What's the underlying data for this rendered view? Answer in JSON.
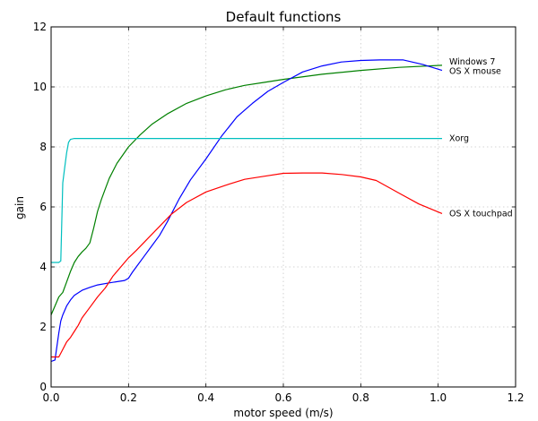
{
  "chart_data": {
    "type": "line",
    "title": "Default functions",
    "xlabel": "motor speed (m/s)",
    "ylabel": "gain",
    "xlim": [
      0,
      1.2
    ],
    "ylim": [
      0,
      12
    ],
    "x_ticks": [
      0,
      0.2,
      0.4,
      0.6,
      0.8,
      1.0,
      1.2
    ],
    "y_ticks": [
      0,
      2,
      4,
      6,
      8,
      10,
      12
    ],
    "x_tick_labels": [
      "0.0",
      "0.2",
      "0.4",
      "0.6",
      "0.8",
      "1.0",
      "1.2"
    ],
    "y_tick_labels": [
      "0",
      "2",
      "4",
      "6",
      "8",
      "10",
      "12"
    ],
    "grid": true,
    "legend": "inline labels at line ends",
    "series": [
      {
        "name": "Windows 7",
        "color": "#008000",
        "x": [
          0.0,
          0.01,
          0.02,
          0.03,
          0.04,
          0.05,
          0.06,
          0.07,
          0.08,
          0.09,
          0.1,
          0.11,
          0.12,
          0.13,
          0.14,
          0.15,
          0.17,
          0.2,
          0.23,
          0.26,
          0.3,
          0.35,
          0.4,
          0.45,
          0.5,
          0.55,
          0.6,
          0.7,
          0.8,
          0.9,
          1.01
        ],
        "y": [
          2.4,
          2.7,
          3.0,
          3.15,
          3.5,
          3.85,
          4.15,
          4.35,
          4.5,
          4.62,
          4.8,
          5.3,
          5.85,
          6.25,
          6.6,
          6.95,
          7.45,
          8.0,
          8.4,
          8.75,
          9.1,
          9.45,
          9.7,
          9.9,
          10.05,
          10.15,
          10.25,
          10.42,
          10.55,
          10.65,
          10.72
        ]
      },
      {
        "name": "OS X mouse",
        "color": "#0000ff",
        "x": [
          0.0,
          0.01,
          0.02,
          0.025,
          0.03,
          0.04,
          0.05,
          0.06,
          0.08,
          0.1,
          0.12,
          0.15,
          0.19,
          0.2,
          0.21,
          0.22,
          0.24,
          0.26,
          0.28,
          0.3,
          0.33,
          0.36,
          0.4,
          0.44,
          0.48,
          0.52,
          0.56,
          0.6,
          0.65,
          0.7,
          0.75,
          0.8,
          0.85,
          0.91,
          0.96,
          1.01
        ],
        "y": [
          0.85,
          0.9,
          1.8,
          2.2,
          2.4,
          2.7,
          2.9,
          3.05,
          3.22,
          3.32,
          3.4,
          3.47,
          3.55,
          3.62,
          3.82,
          4.0,
          4.35,
          4.7,
          5.05,
          5.5,
          6.25,
          6.9,
          7.6,
          8.35,
          9.0,
          9.45,
          9.85,
          10.15,
          10.5,
          10.7,
          10.83,
          10.88,
          10.9,
          10.9,
          10.75,
          10.55
        ]
      },
      {
        "name": "Xorg",
        "color": "#00bfbf",
        "x": [
          0.0,
          0.02,
          0.025,
          0.03,
          0.035,
          0.04,
          0.045,
          0.05,
          0.06,
          0.08,
          0.2,
          0.4,
          0.6,
          0.8,
          1.01
        ],
        "y": [
          4.15,
          4.15,
          4.2,
          6.8,
          7.3,
          7.8,
          8.15,
          8.25,
          8.28,
          8.28,
          8.28,
          8.28,
          8.28,
          8.28,
          8.28
        ]
      },
      {
        "name": "OS X touchpad",
        "color": "#ff0000",
        "x": [
          0.0,
          0.02,
          0.03,
          0.04,
          0.05,
          0.06,
          0.07,
          0.08,
          0.1,
          0.12,
          0.14,
          0.16,
          0.18,
          0.2,
          0.22,
          0.25,
          0.28,
          0.31,
          0.35,
          0.4,
          0.45,
          0.5,
          0.55,
          0.6,
          0.65,
          0.7,
          0.75,
          0.8,
          0.84,
          0.9,
          0.95,
          1.01
        ],
        "y": [
          1.0,
          1.0,
          1.25,
          1.5,
          1.65,
          1.85,
          2.05,
          2.3,
          2.65,
          3.0,
          3.3,
          3.7,
          4.0,
          4.3,
          4.55,
          4.95,
          5.35,
          5.75,
          6.15,
          6.5,
          6.72,
          6.92,
          7.02,
          7.12,
          7.13,
          7.13,
          7.08,
          7.0,
          6.88,
          6.45,
          6.1,
          5.78
        ]
      }
    ]
  }
}
